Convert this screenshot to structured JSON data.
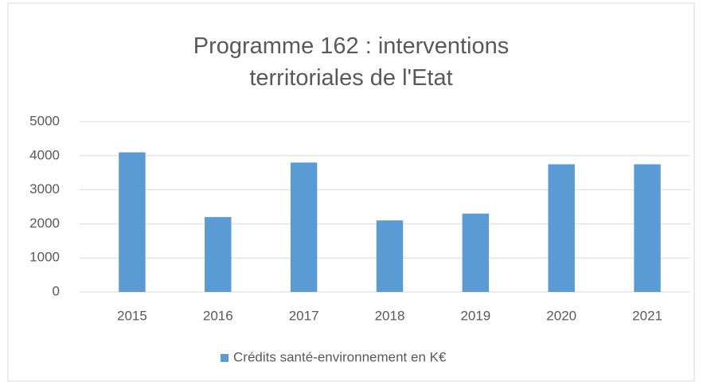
{
  "chart_data": {
    "type": "bar",
    "title": "Programme 162 : interventions territoriales de l'Etat",
    "categories": [
      "2015",
      "2016",
      "2017",
      "2018",
      "2019",
      "2020",
      "2021"
    ],
    "series": [
      {
        "name": "Crédits santé-environnement en K€",
        "color": "#5b9bd5",
        "values": [
          4100,
          2200,
          3800,
          2100,
          2300,
          3750,
          3750
        ]
      }
    ],
    "ylim": [
      0,
      5000
    ],
    "yticks": [
      0,
      1000,
      2000,
      3000,
      4000,
      5000
    ],
    "grid": true,
    "legend": "bottom"
  }
}
